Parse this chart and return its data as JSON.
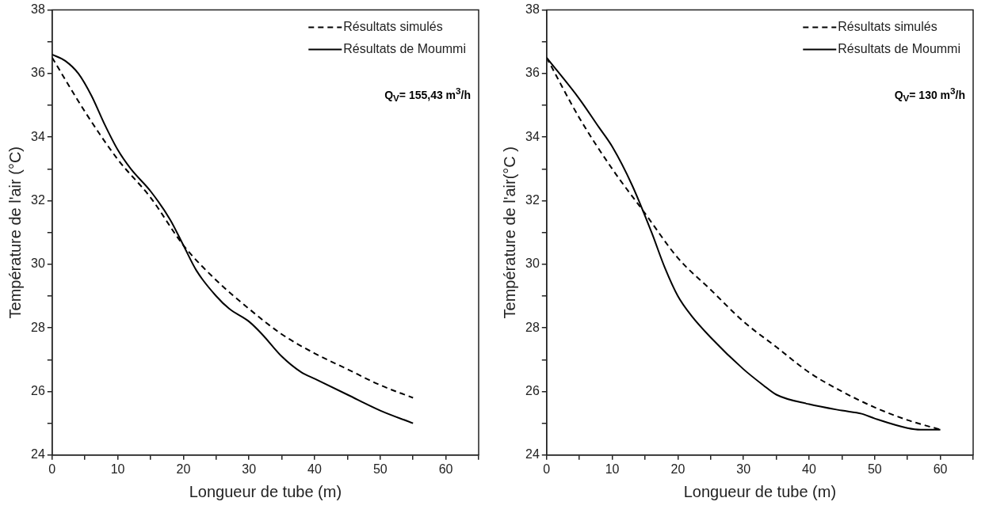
{
  "chart_data": [
    {
      "type": "line",
      "xlabel": "Longueur de tube (m)",
      "ylabel": "Température de l'air (°C)",
      "xlim": [
        0,
        65
      ],
      "xticks": [
        0,
        {
          "value": 5,
          "label": null
        },
        10,
        {
          "value": 15,
          "label": null
        },
        20,
        {
          "value": 25,
          "label": null
        },
        30,
        {
          "value": 35,
          "label": null
        },
        40,
        {
          "value": 45,
          "label": null
        },
        50,
        {
          "value": 55,
          "label": null
        },
        60,
        {
          "value": 65,
          "label": null
        }
      ],
      "ylim": [
        24,
        38
      ],
      "yticks": [
        24,
        {
          "value": 25,
          "label": null
        },
        26,
        {
          "value": 27,
          "label": null
        },
        28,
        {
          "value": 29,
          "label": null
        },
        30,
        {
          "value": 31,
          "label": null
        },
        32,
        {
          "value": 33,
          "label": null
        },
        34,
        {
          "value": 35,
          "label": null
        },
        36,
        {
          "value": 37,
          "label": null
        },
        38
      ],
      "grid": false,
      "legend": "top right",
      "marker": "none",
      "annotations": [
        "Q$_{V}$= 155,43 m$^{3}$/h"
      ],
      "series": [
        {
          "name": "Résultats simulés",
          "color": "#000000",
          "line_style": "dashed",
          "x": [
            0,
            5,
            10,
            15,
            20,
            25,
            30,
            35,
            40,
            45,
            50,
            55
          ],
          "values": [
            36.5,
            34.8,
            33.3,
            32.1,
            30.6,
            29.5,
            28.6,
            27.8,
            27.2,
            26.7,
            26.2,
            25.8
          ]
        },
        {
          "name": "Résultats de Moummi",
          "color": "#000000",
          "line_style": "solid",
          "x": [
            0,
            2,
            4,
            6,
            8,
            10,
            12,
            15,
            18,
            20,
            22,
            25,
            27,
            30,
            32,
            35,
            38,
            40,
            45,
            50,
            55
          ],
          "values": [
            36.6,
            36.4,
            36.0,
            35.3,
            34.4,
            33.6,
            33.0,
            32.3,
            31.4,
            30.6,
            29.8,
            29.0,
            28.6,
            28.2,
            27.8,
            27.1,
            26.6,
            26.4,
            25.9,
            25.4,
            25.0
          ]
        }
      ]
    },
    {
      "type": "line",
      "xlabel": "Longueur de tube (m)",
      "ylabel": "Température de l'air(°C )",
      "xlim": [
        0,
        65
      ],
      "xticks": [
        0,
        {
          "value": 5,
          "label": null
        },
        10,
        {
          "value": 15,
          "label": null
        },
        20,
        {
          "value": 25,
          "label": null
        },
        30,
        {
          "value": 35,
          "label": null
        },
        40,
        {
          "value": 45,
          "label": null
        },
        50,
        {
          "value": 55,
          "label": null
        },
        60,
        {
          "value": 65,
          "label": null
        }
      ],
      "ylim": [
        24,
        38
      ],
      "yticks": [
        24,
        {
          "value": 25,
          "label": null
        },
        26,
        {
          "value": 27,
          "label": null
        },
        28,
        {
          "value": 29,
          "label": null
        },
        30,
        {
          "value": 31,
          "label": null
        },
        32,
        {
          "value": 33,
          "label": null
        },
        34,
        {
          "value": 35,
          "label": null
        },
        36,
        {
          "value": 37,
          "label": null
        },
        38
      ],
      "grid": false,
      "legend": "top right",
      "marker": "none",
      "annotations": [
        "Q$_{V}$= 130 m$^{3}$/h"
      ],
      "series": [
        {
          "name": "Résultats simulés",
          "color": "#000000",
          "line_style": "dashed",
          "x": [
            0,
            5,
            10,
            15,
            20,
            25,
            30,
            35,
            40,
            45,
            50,
            55,
            60
          ],
          "values": [
            36.5,
            34.6,
            33.0,
            31.6,
            30.2,
            29.2,
            28.2,
            27.4,
            26.6,
            26.0,
            25.5,
            25.1,
            24.8
          ]
        },
        {
          "name": "Résultats de Moummi",
          "color": "#000000",
          "line_style": "solid",
          "x": [
            0,
            5,
            8,
            10,
            13,
            16,
            18,
            20,
            22,
            25,
            30,
            33,
            35,
            40,
            45,
            48,
            50,
            55,
            57,
            60
          ],
          "values": [
            36.5,
            35.2,
            34.3,
            33.7,
            32.5,
            31.0,
            29.9,
            29.0,
            28.4,
            27.7,
            26.7,
            26.2,
            25.9,
            25.6,
            25.4,
            25.3,
            25.15,
            24.85,
            24.8,
            24.8
          ]
        }
      ]
    }
  ]
}
